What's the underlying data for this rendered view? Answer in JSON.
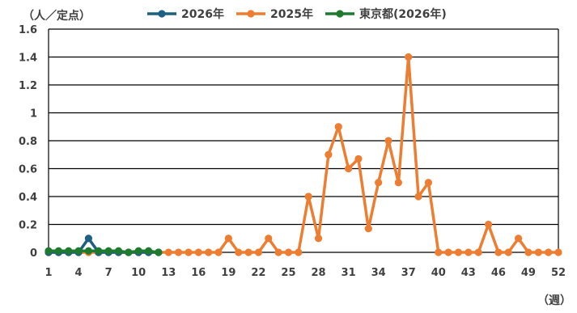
{
  "chart_data": {
    "type": "line",
    "y_unit_label": "（人／定点）",
    "x_unit_label": "（週）",
    "xlim": [
      1,
      52
    ],
    "ylim": [
      0,
      1.6
    ],
    "y_ticks": [
      "0",
      "0.2",
      "0.4",
      "0.6",
      "0.8",
      "1",
      "1.2",
      "1.4",
      "1.6"
    ],
    "x_ticks": [
      "1",
      "4",
      "7",
      "10",
      "13",
      "16",
      "19",
      "22",
      "25",
      "28",
      "31",
      "34",
      "37",
      "40",
      "43",
      "46",
      "49",
      "52"
    ],
    "grid": "horizontal",
    "legend_position": "top",
    "series": [
      {
        "name": "2026年",
        "color": "#1f5f82",
        "x": [
          1,
          2,
          3,
          4,
          5,
          6,
          7,
          8,
          9,
          10,
          11,
          12
        ],
        "y": [
          0,
          0,
          0,
          0,
          0.1,
          0,
          0,
          0,
          0,
          0,
          0,
          0
        ]
      },
      {
        "name": "2025年",
        "color": "#ed7d31",
        "x": [
          1,
          2,
          3,
          4,
          5,
          6,
          7,
          8,
          9,
          10,
          11,
          12,
          13,
          14,
          15,
          16,
          17,
          18,
          19,
          20,
          21,
          22,
          23,
          24,
          25,
          26,
          27,
          28,
          29,
          30,
          31,
          32,
          33,
          34,
          35,
          36,
          37,
          38,
          39,
          40,
          41,
          42,
          43,
          44,
          45,
          46,
          47,
          48,
          49,
          50,
          51,
          52
        ],
        "y": [
          0,
          0,
          0,
          0,
          0,
          0,
          0,
          0,
          0,
          0,
          0,
          0,
          0,
          0,
          0,
          0,
          0,
          0,
          0.1,
          0,
          0,
          0,
          0.1,
          0,
          0,
          0,
          0.4,
          0.1,
          0.7,
          0.9,
          0.6,
          0.67,
          0.17,
          0.5,
          0.8,
          0.5,
          1.4,
          0.4,
          0.5,
          0,
          0,
          0,
          0,
          0,
          0.2,
          0,
          0,
          0.1,
          0,
          0,
          0,
          0
        ]
      },
      {
        "name": "東京都(2026年)",
        "color": "#1e7a2e",
        "x": [
          1,
          2,
          3,
          4,
          5,
          6,
          7,
          8,
          9,
          10,
          11,
          12
        ],
        "y": [
          0.01,
          0.01,
          0.01,
          0.01,
          0.01,
          0.01,
          0.01,
          0.01,
          0.0,
          0.01,
          0.01,
          0.0
        ]
      }
    ]
  }
}
